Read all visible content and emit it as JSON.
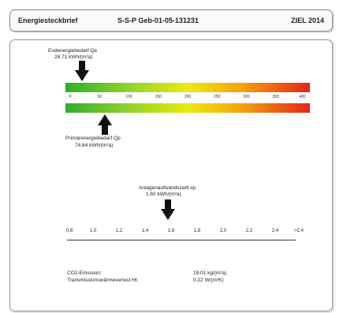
{
  "header": {
    "app_title": "Energiesteckbrief",
    "building_id": "S-S-P Geb-01-05-131231",
    "goal": "ZIEL 2014"
  },
  "endenergie": {
    "label": "Endenergiebedarf Qe",
    "value": "26.71 kWh/(m²a)"
  },
  "energy_scale": [
    "0",
    "50",
    "100",
    "150",
    "200",
    "250",
    "300",
    "350",
    "400"
  ],
  "primaerenergie": {
    "label": "Primärenergiebedarf Qp",
    "value": "74.64 kWh/(m²a)"
  },
  "anlagen": {
    "label": "Anlagenaufwandszahl ep",
    "value": "1.60 kWh/(m²a)"
  },
  "ep_scale": [
    "0,8",
    "1,0",
    "1,2",
    "1,4",
    "1,6",
    "1,8",
    "2,0",
    "2,2",
    "2,4",
    ">2,4"
  ],
  "stats": {
    "co2_label": "CO2-Emission:",
    "co2_value": "19.01 kg/(m²a)",
    "trans_label": "Transmissionswärmeverlust Ht:",
    "trans_value": "0.22 W/(m²K)"
  },
  "colors": {
    "bar_green": "#2fae2f",
    "bar_yellow": "#eaea10",
    "bar_red": "#e3261b"
  }
}
